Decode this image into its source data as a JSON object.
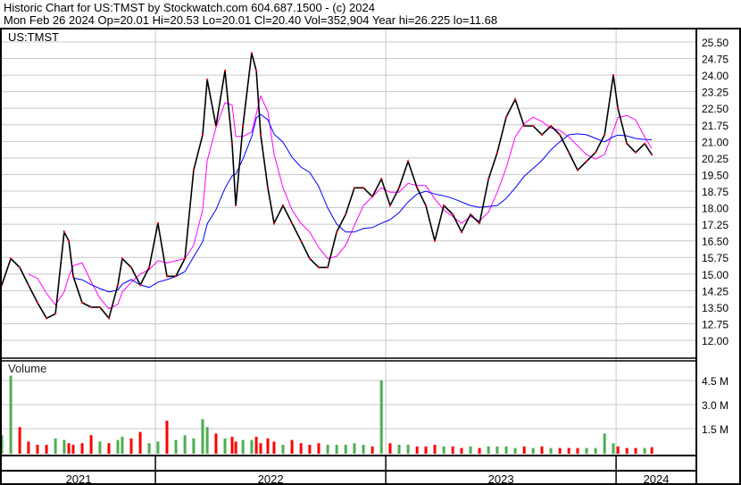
{
  "header": {
    "title": "Historic Chart for US:TMST by Stockwatch.com 604.687.1500 - (c) 2024",
    "quote": "Mon Feb 26 2024  Op=20.01  Hi=20.53  Lo=20.01  Cl=20.40  Vol=352,904   Year hi=26.225  lo=11.68"
  },
  "chart_data": [
    {
      "type": "line",
      "title": "US:TMST",
      "ylim": [
        11.5,
        26.0
      ],
      "ytick_labels": [
        "12.00",
        "12.75",
        "13.50",
        "14.25",
        "15.00",
        "15.75",
        "16.50",
        "17.25",
        "18.00",
        "18.75",
        "19.50",
        "20.25",
        "21.00",
        "21.75",
        "22.50",
        "23.25",
        "24.00",
        "24.75",
        "25.50"
      ],
      "xlim": [
        2021.333,
        2024.357
      ],
      "xtick_labels": [
        "2021",
        "2022",
        "2023",
        "2024"
      ],
      "grid": true,
      "colors": {
        "price": "#000000",
        "ma_short": "#ff00ff",
        "ma_long": "#0000ff",
        "grid": "#c8c8c8"
      },
      "moving_averages": [
        {
          "color": "#ff00ff",
          "window": 4
        },
        {
          "color": "#0000ff",
          "window": 10
        }
      ],
      "x": [
        2021.333,
        2021.372,
        2021.411,
        2021.449,
        2021.488,
        2021.527,
        2021.566,
        2021.604,
        2021.624,
        2021.643,
        2021.682,
        2021.721,
        2021.759,
        2021.798,
        2021.837,
        2021.856,
        2021.895,
        2021.934,
        2021.973,
        2022.011,
        2022.05,
        2022.089,
        2022.128,
        2022.166,
        2022.205,
        2022.225,
        2022.263,
        2022.302,
        2022.333,
        2022.349,
        2022.38,
        2022.418,
        2022.438,
        2022.457,
        2022.488,
        2022.515,
        2022.554,
        2022.593,
        2022.632,
        2022.67,
        2022.709,
        2022.748,
        2022.787,
        2022.826,
        2022.864,
        2022.903,
        2022.942,
        2022.981,
        2023.019,
        2023.058,
        2023.097,
        2023.136,
        2023.174,
        2023.213,
        2023.252,
        2023.291,
        2023.329,
        2023.368,
        2023.407,
        2023.446,
        2023.484,
        2023.523,
        2023.562,
        2023.601,
        2023.64,
        2023.678,
        2023.717,
        2023.756,
        2023.795,
        2023.833,
        2023.872,
        2023.911,
        2023.95,
        2023.988,
        2024.008,
        2024.047,
        2024.085,
        2024.124,
        2024.155
      ],
      "close": [
        14.5,
        15.7,
        15.3,
        14.5,
        13.7,
        13.0,
        13.2,
        16.9,
        16.5,
        14.9,
        13.7,
        13.5,
        13.5,
        13.0,
        14.5,
        15.7,
        15.3,
        14.5,
        15.3,
        17.3,
        14.9,
        14.9,
        15.7,
        19.7,
        21.3,
        23.8,
        21.7,
        24.2,
        20.9,
        18.1,
        21.7,
        25.0,
        24.2,
        21.3,
        18.9,
        17.3,
        18.1,
        17.3,
        16.5,
        15.7,
        15.3,
        15.3,
        16.9,
        17.7,
        18.9,
        18.9,
        18.5,
        19.3,
        18.1,
        18.9,
        20.1,
        18.9,
        18.1,
        16.5,
        18.1,
        17.7,
        16.9,
        17.7,
        17.3,
        19.3,
        20.5,
        22.1,
        22.9,
        21.7,
        21.7,
        21.3,
        21.7,
        21.3,
        20.5,
        19.7,
        20.1,
        20.5,
        21.3,
        24.0,
        22.5,
        20.9,
        20.5,
        20.9,
        20.4
      ]
    },
    {
      "type": "bar",
      "title": "Volume",
      "ylim": [
        0,
        5.5
      ],
      "ytick_labels": [
        "4.5 M",
        "3.0 M",
        "1.5 M"
      ],
      "ytick_values": [
        4.5,
        3.0,
        1.5
      ],
      "colors": {
        "up": "#4caf50",
        "down": "#ff0000"
      },
      "values_millions": [
        1.1,
        4.8,
        1.6,
        0.7,
        0.5,
        0.5,
        0.9,
        0.8,
        0.6,
        0.5,
        0.6,
        1.1,
        0.7,
        0.6,
        0.8,
        1.0,
        0.9,
        1.3,
        0.6,
        0.7,
        2.0,
        0.8,
        1.1,
        0.9,
        2.1,
        1.6,
        1.2,
        0.9,
        1.0,
        0.7,
        0.8,
        0.8,
        1.0,
        0.6,
        0.9,
        0.7,
        0.5,
        0.8,
        0.6,
        0.5,
        0.6,
        0.5,
        0.5,
        0.5,
        0.6,
        0.5,
        0.4,
        4.5,
        0.6,
        0.5,
        0.5,
        0.4,
        0.4,
        0.5,
        0.4,
        0.4,
        0.3,
        0.4,
        0.3,
        0.4,
        0.4,
        0.4,
        0.3,
        0.4,
        0.3,
        0.4,
        0.3,
        0.3,
        0.3,
        0.3,
        0.3,
        0.3,
        1.2,
        0.6,
        0.4,
        0.3,
        0.3,
        0.3,
        0.35
      ]
    }
  ]
}
